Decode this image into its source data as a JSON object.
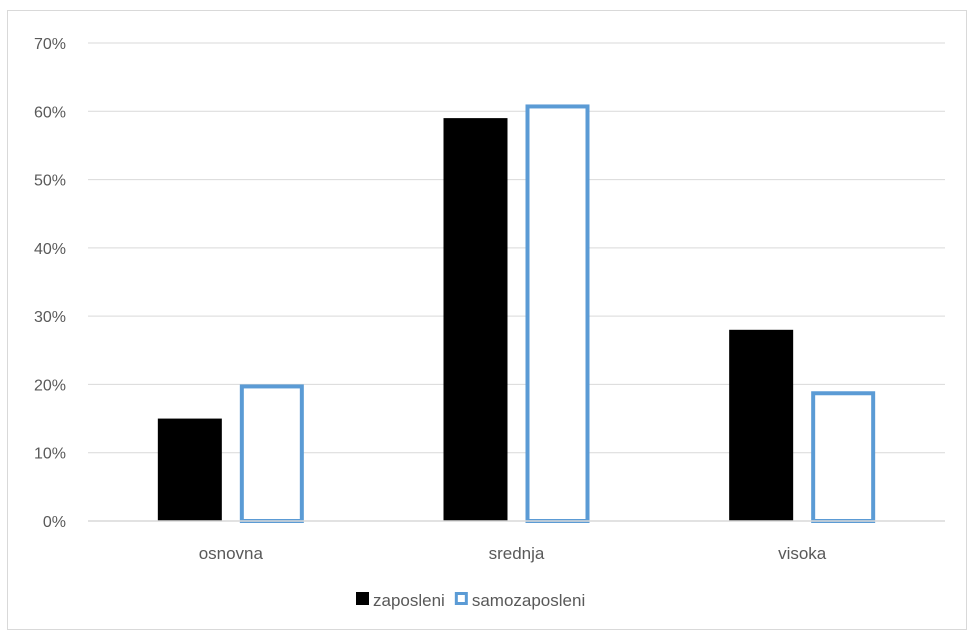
{
  "chart_data": {
    "type": "bar",
    "title": "",
    "xlabel": "",
    "ylabel": "",
    "categories": [
      "osnovna",
      "srednja",
      "visoka"
    ],
    "series": [
      {
        "name": "zaposleni",
        "values": [
          15,
          59,
          28
        ],
        "color": "#000000",
        "style": "filled"
      },
      {
        "name": "samozaposleni",
        "values": [
          20,
          61,
          19
        ],
        "color": "#5b9bd5",
        "style": "outline"
      }
    ],
    "ylim": [
      0,
      70
    ],
    "yticks": [
      "0%",
      "10%",
      "20%",
      "30%",
      "40%",
      "50%",
      "60%",
      "70%"
    ],
    "grid": true,
    "legend_position": "bottom"
  }
}
